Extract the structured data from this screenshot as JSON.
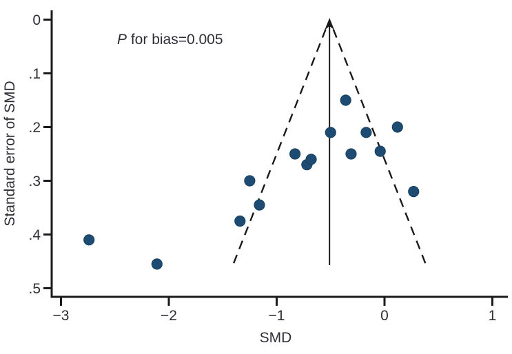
{
  "chart_data": {
    "type": "scatter",
    "subtype": "funnel-plot",
    "title": "",
    "xlabel": "SMD",
    "ylabel": "Standard error of SMD",
    "annotation": {
      "italic_part": "P",
      "rest": " for bias=0.005",
      "full_text": "P for bias=0.005"
    },
    "xlim": [
      -3,
      1
    ],
    "ylim_se": [
      0,
      0.5
    ],
    "y_axis_inverted": true,
    "grid": false,
    "legend": "none",
    "x_ticks": {
      "values": [
        -3,
        -2,
        -1,
        0,
        1
      ],
      "labels": [
        "−3",
        "−2",
        "−1",
        "0",
        "1"
      ]
    },
    "y_ticks": {
      "values": [
        0,
        0.1,
        0.2,
        0.3,
        0.4,
        0.5
      ],
      "labels": [
        "0",
        ".1",
        ".2",
        ".3",
        ".4",
        ".5"
      ]
    },
    "points": [
      {
        "smd": -2.74,
        "se": 0.41
      },
      {
        "smd": -2.11,
        "se": 0.455
      },
      {
        "smd": -1.34,
        "se": 0.375
      },
      {
        "smd": -1.25,
        "se": 0.3
      },
      {
        "smd": -1.16,
        "se": 0.345
      },
      {
        "smd": -0.83,
        "se": 0.25
      },
      {
        "smd": -0.72,
        "se": 0.27
      },
      {
        "smd": -0.68,
        "se": 0.26
      },
      {
        "smd": -0.5,
        "se": 0.21
      },
      {
        "smd": -0.36,
        "se": 0.15
      },
      {
        "smd": -0.31,
        "se": 0.25
      },
      {
        "smd": -0.17,
        "se": 0.21
      },
      {
        "smd": -0.04,
        "se": 0.245
      },
      {
        "smd": 0.12,
        "se": 0.2
      },
      {
        "smd": 0.27,
        "se": 0.32
      }
    ],
    "funnel": {
      "center_smd": -0.51,
      "ci_multiplier": 1.96,
      "se_bottom": 0.457,
      "line_style": "dashed",
      "center_line_style": "solid-with-arrow"
    },
    "colors": {
      "marker_fill": "#1d4b72",
      "marker_stroke": "#16405f",
      "line_color": "#1a1a1a",
      "text_color": "#2e2e36",
      "background": "#ffffff"
    }
  }
}
